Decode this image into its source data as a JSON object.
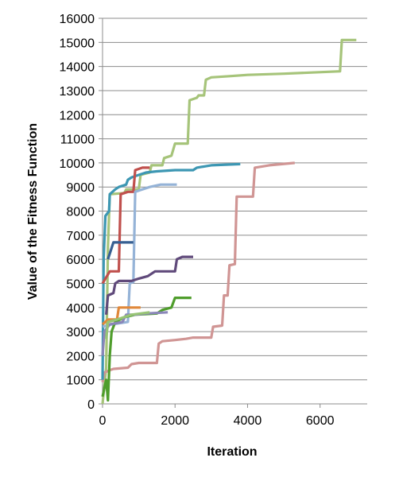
{
  "chart_data": {
    "type": "line",
    "title": "",
    "xlabel": "Iteration",
    "ylabel": "Value of the Fitness Function",
    "xlim": [
      0,
      7300
    ],
    "ylim": [
      0,
      16000
    ],
    "xticks": [
      0,
      2000,
      4000,
      6000
    ],
    "xtick_labels": [
      "0",
      "2000",
      "4000",
      "6000"
    ],
    "yticks": [
      0,
      1000,
      2000,
      3000,
      4000,
      5000,
      6000,
      7000,
      8000,
      9000,
      10000,
      11000,
      12000,
      13000,
      14000,
      15000,
      16000
    ],
    "ytick_labels": [
      "0",
      "1000",
      "2000",
      "3000",
      "4000",
      "5000",
      "6000",
      "7000",
      "8000",
      "9000",
      "10000",
      "11000",
      "12000",
      "13000",
      "14000",
      "15000",
      "16000"
    ],
    "grid": "horizontal",
    "legend": "none",
    "series": [
      {
        "color": "#a6c47a",
        "values": [
          [
            0,
            0
          ],
          [
            100,
            1500
          ],
          [
            150,
            6500
          ],
          [
            200,
            8700
          ],
          [
            600,
            8750
          ],
          [
            650,
            8900
          ],
          [
            1000,
            8900
          ],
          [
            1050,
            9500
          ],
          [
            1300,
            9600
          ],
          [
            1350,
            9900
          ],
          [
            1650,
            9900
          ],
          [
            1700,
            10200
          ],
          [
            1900,
            10300
          ],
          [
            2000,
            10800
          ],
          [
            2350,
            10800
          ],
          [
            2400,
            12600
          ],
          [
            2600,
            12700
          ],
          [
            2650,
            12800
          ],
          [
            2800,
            12800
          ],
          [
            2850,
            13450
          ],
          [
            3000,
            13550
          ],
          [
            3500,
            13600
          ],
          [
            4000,
            13650
          ],
          [
            5000,
            13700
          ],
          [
            6550,
            13800
          ],
          [
            6600,
            15100
          ],
          [
            7000,
            15100
          ]
        ]
      },
      {
        "color": "#d09594",
        "values": [
          [
            0,
            900
          ],
          [
            50,
            1300
          ],
          [
            200,
            1400
          ],
          [
            300,
            1450
          ],
          [
            700,
            1500
          ],
          [
            800,
            1650
          ],
          [
            1000,
            1700
          ],
          [
            1500,
            1700
          ],
          [
            1550,
            2500
          ],
          [
            1650,
            2600
          ],
          [
            2000,
            2650
          ],
          [
            2300,
            2700
          ],
          [
            2500,
            2750
          ],
          [
            3000,
            2750
          ],
          [
            3050,
            3200
          ],
          [
            3300,
            3250
          ],
          [
            3350,
            4500
          ],
          [
            3450,
            4500
          ],
          [
            3500,
            5750
          ],
          [
            3650,
            5800
          ],
          [
            3700,
            8600
          ],
          [
            4150,
            8600
          ],
          [
            4200,
            9800
          ],
          [
            4600,
            9900
          ],
          [
            5300,
            10000
          ]
        ]
      },
      {
        "color": "#3d97b3",
        "values": [
          [
            0,
            1000
          ],
          [
            30,
            6000
          ],
          [
            80,
            7800
          ],
          [
            180,
            8000
          ],
          [
            200,
            8700
          ],
          [
            350,
            8900
          ],
          [
            450,
            9000
          ],
          [
            650,
            9100
          ],
          [
            700,
            9300
          ],
          [
            800,
            9400
          ],
          [
            1000,
            9500
          ],
          [
            1200,
            9600
          ],
          [
            1500,
            9650
          ],
          [
            2000,
            9700
          ],
          [
            2500,
            9700
          ],
          [
            2600,
            9800
          ],
          [
            3000,
            9900
          ],
          [
            3800,
            9950
          ]
        ]
      },
      {
        "color": "#c0504d",
        "values": [
          [
            0,
            5000
          ],
          [
            200,
            5500
          ],
          [
            450,
            5500
          ],
          [
            500,
            8700
          ],
          [
            700,
            8800
          ],
          [
            850,
            8800
          ],
          [
            900,
            9700
          ],
          [
            1100,
            9800
          ],
          [
            1300,
            9800
          ]
        ]
      },
      {
        "color": "#95b3d7",
        "values": [
          [
            0,
            3200
          ],
          [
            250,
            3300
          ],
          [
            700,
            3400
          ],
          [
            750,
            5000
          ],
          [
            850,
            5050
          ],
          [
            900,
            8800
          ],
          [
            1000,
            8850
          ],
          [
            1300,
            9000
          ],
          [
            1600,
            9100
          ],
          [
            2050,
            9100
          ]
        ]
      },
      {
        "color": "#375f92",
        "values": [
          [
            150,
            6000
          ],
          [
            300,
            6700
          ],
          [
            850,
            6700
          ]
        ]
      },
      {
        "color": "#604a7b",
        "values": [
          [
            100,
            3700
          ],
          [
            150,
            4500
          ],
          [
            300,
            4600
          ],
          [
            350,
            5000
          ],
          [
            450,
            5100
          ],
          [
            800,
            5100
          ],
          [
            1000,
            5200
          ],
          [
            1250,
            5300
          ],
          [
            1450,
            5500
          ],
          [
            2000,
            5500
          ],
          [
            2050,
            6000
          ],
          [
            2200,
            6100
          ],
          [
            2500,
            6100
          ]
        ]
      },
      {
        "color": "#e0883a",
        "values": [
          [
            0,
            3300
          ],
          [
            150,
            3500
          ],
          [
            400,
            3500
          ],
          [
            450,
            4000
          ],
          [
            600,
            4000
          ],
          [
            1050,
            4000
          ]
        ]
      },
      {
        "color": "#4f9d2c",
        "values": [
          [
            0,
            300
          ],
          [
            100,
            1000
          ],
          [
            150,
            150
          ],
          [
            200,
            2000
          ],
          [
            250,
            3000
          ],
          [
            350,
            3400
          ],
          [
            600,
            3600
          ],
          [
            900,
            3700
          ],
          [
            1500,
            3750
          ],
          [
            1650,
            3900
          ],
          [
            1900,
            4000
          ],
          [
            2000,
            4400
          ],
          [
            2450,
            4400
          ]
        ]
      },
      {
        "color": "#8a86b8",
        "values": [
          [
            0,
            2000
          ],
          [
            50,
            3000
          ],
          [
            200,
            3300
          ],
          [
            550,
            3400
          ],
          [
            650,
            3700
          ],
          [
            900,
            3700
          ],
          [
            1200,
            3750
          ],
          [
            1800,
            3800
          ]
        ]
      },
      {
        "color": "#97c475",
        "values": [
          [
            100,
            2700
          ],
          [
            150,
            3400
          ],
          [
            400,
            3500
          ],
          [
            800,
            3700
          ],
          [
            1300,
            3800
          ]
        ]
      }
    ]
  }
}
